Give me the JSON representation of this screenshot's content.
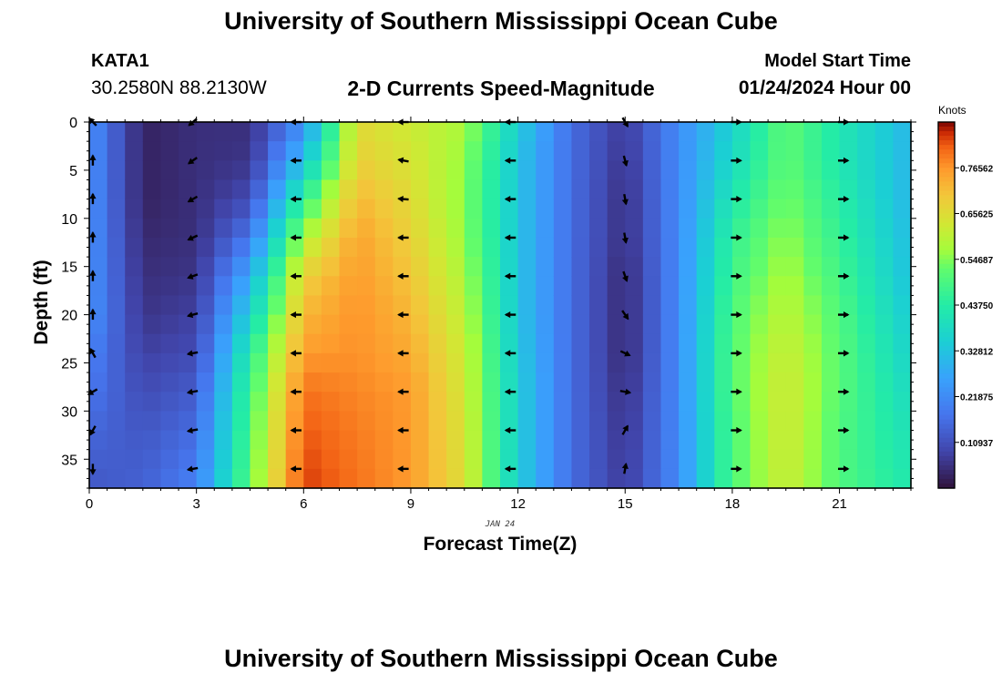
{
  "header": {
    "title": "University of Southern Mississippi Ocean Cube",
    "station_id": "KATA1",
    "station_location": "30.2580N  88.2130W",
    "subtitle": "2-D Currents Speed-Magnitude",
    "start_label": "Model Start Time",
    "start_value": "01/24/2024 Hour 00"
  },
  "footer": {
    "title": "University of Southern Mississippi Ocean Cube"
  },
  "chart_data": {
    "type": "heatmap",
    "title": "2-D Currents Speed-Magnitude",
    "xlabel": "Forecast Time(Z)",
    "ylabel": "Depth (ft)",
    "date_label": "JAN 24",
    "xlim": [
      0,
      23
    ],
    "ylim": [
      0,
      38
    ],
    "x_ticks": [
      0,
      3,
      6,
      9,
      12,
      15,
      18,
      21
    ],
    "y_ticks": [
      0,
      5,
      10,
      15,
      20,
      25,
      30,
      35
    ],
    "colorbar": {
      "label": "Knots",
      "range": [
        0,
        0.875
      ],
      "tick_labels": [
        "0.76562",
        "0.65625",
        "0.54687",
        "0.43750",
        "0.32812",
        "0.21875",
        "0.10937"
      ],
      "tick_values": [
        0.765625,
        0.65625,
        0.546875,
        0.4375,
        0.328125,
        0.21875,
        0.109375
      ]
    },
    "speed_profile_knots": [
      [
        0.23,
        0.23,
        0.23,
        0.23,
        0.23,
        0.23,
        0.2,
        0.18,
        0.15,
        0.12
      ],
      [
        0.03,
        0.03,
        0.03,
        0.04,
        0.05,
        0.06,
        0.08,
        0.1,
        0.12,
        0.14
      ],
      [
        0.05,
        0.05,
        0.05,
        0.05,
        0.06,
        0.08,
        0.1,
        0.13,
        0.16,
        0.2
      ],
      [
        0.05,
        0.06,
        0.1,
        0.18,
        0.28,
        0.36,
        0.44,
        0.48,
        0.5,
        0.52
      ],
      [
        0.22,
        0.32,
        0.46,
        0.58,
        0.68,
        0.72,
        0.76,
        0.8,
        0.82,
        0.84
      ],
      [
        0.66,
        0.68,
        0.72,
        0.75,
        0.76,
        0.77,
        0.77,
        0.78,
        0.79,
        0.8
      ],
      [
        0.62,
        0.64,
        0.66,
        0.68,
        0.7,
        0.72,
        0.74,
        0.76,
        0.76,
        0.76
      ],
      [
        0.58,
        0.56,
        0.55,
        0.56,
        0.58,
        0.6,
        0.62,
        0.63,
        0.64,
        0.65
      ],
      [
        0.35,
        0.33,
        0.33,
        0.33,
        0.33,
        0.33,
        0.34,
        0.35,
        0.35,
        0.35
      ],
      [
        0.16,
        0.16,
        0.16,
        0.16,
        0.16,
        0.16,
        0.16,
        0.16,
        0.16,
        0.16
      ],
      [
        0.07,
        0.06,
        0.05,
        0.05,
        0.04,
        0.04,
        0.04,
        0.05,
        0.06,
        0.07
      ],
      [
        0.22,
        0.22,
        0.22,
        0.22,
        0.22,
        0.22,
        0.22,
        0.22,
        0.22,
        0.22
      ],
      [
        0.36,
        0.38,
        0.42,
        0.46,
        0.48,
        0.5,
        0.51,
        0.51,
        0.5,
        0.5
      ],
      [
        0.52,
        0.52,
        0.54,
        0.56,
        0.58,
        0.6,
        0.62,
        0.63,
        0.63,
        0.62
      ],
      [
        0.42,
        0.42,
        0.44,
        0.46,
        0.48,
        0.5,
        0.51,
        0.51,
        0.5,
        0.5
      ],
      [
        0.3,
        0.3,
        0.3,
        0.31,
        0.32,
        0.34,
        0.36,
        0.38,
        0.4,
        0.42
      ]
    ],
    "speed_profile_times": [
      0,
      1.5,
      3,
      4.5,
      6,
      7.5,
      9,
      10.5,
      12,
      13.5,
      15,
      16.5,
      18,
      19.5,
      21,
      23
    ],
    "speed_profile_depths": [
      0,
      4,
      8,
      12,
      16,
      20,
      24,
      28,
      32,
      38
    ],
    "vector_times": [
      0.1,
      2.9,
      5.8,
      8.8,
      11.8,
      15.0,
      18.1,
      21.1
    ],
    "vector_depths": [
      0,
      4,
      8,
      12,
      16,
      20,
      24,
      28,
      32,
      36
    ],
    "vector_directions_deg": [
      [
        135,
        90,
        90,
        90,
        90,
        90,
        120,
        210,
        240,
        270
      ],
      [
        220,
        215,
        210,
        205,
        200,
        195,
        190,
        190,
        190,
        190
      ],
      [
        180,
        180,
        180,
        180,
        180,
        180,
        180,
        180,
        180,
        180
      ],
      [
        180,
        170,
        175,
        180,
        180,
        180,
        180,
        180,
        180,
        180
      ],
      [
        180,
        180,
        180,
        180,
        180,
        180,
        180,
        180,
        180,
        180
      ],
      [
        300,
        285,
        280,
        280,
        290,
        305,
        335,
        350,
        60,
        80
      ],
      [
        0,
        0,
        0,
        0,
        0,
        0,
        0,
        0,
        0,
        0
      ],
      [
        0,
        0,
        0,
        0,
        0,
        0,
        0,
        0,
        0,
        0
      ]
    ]
  }
}
